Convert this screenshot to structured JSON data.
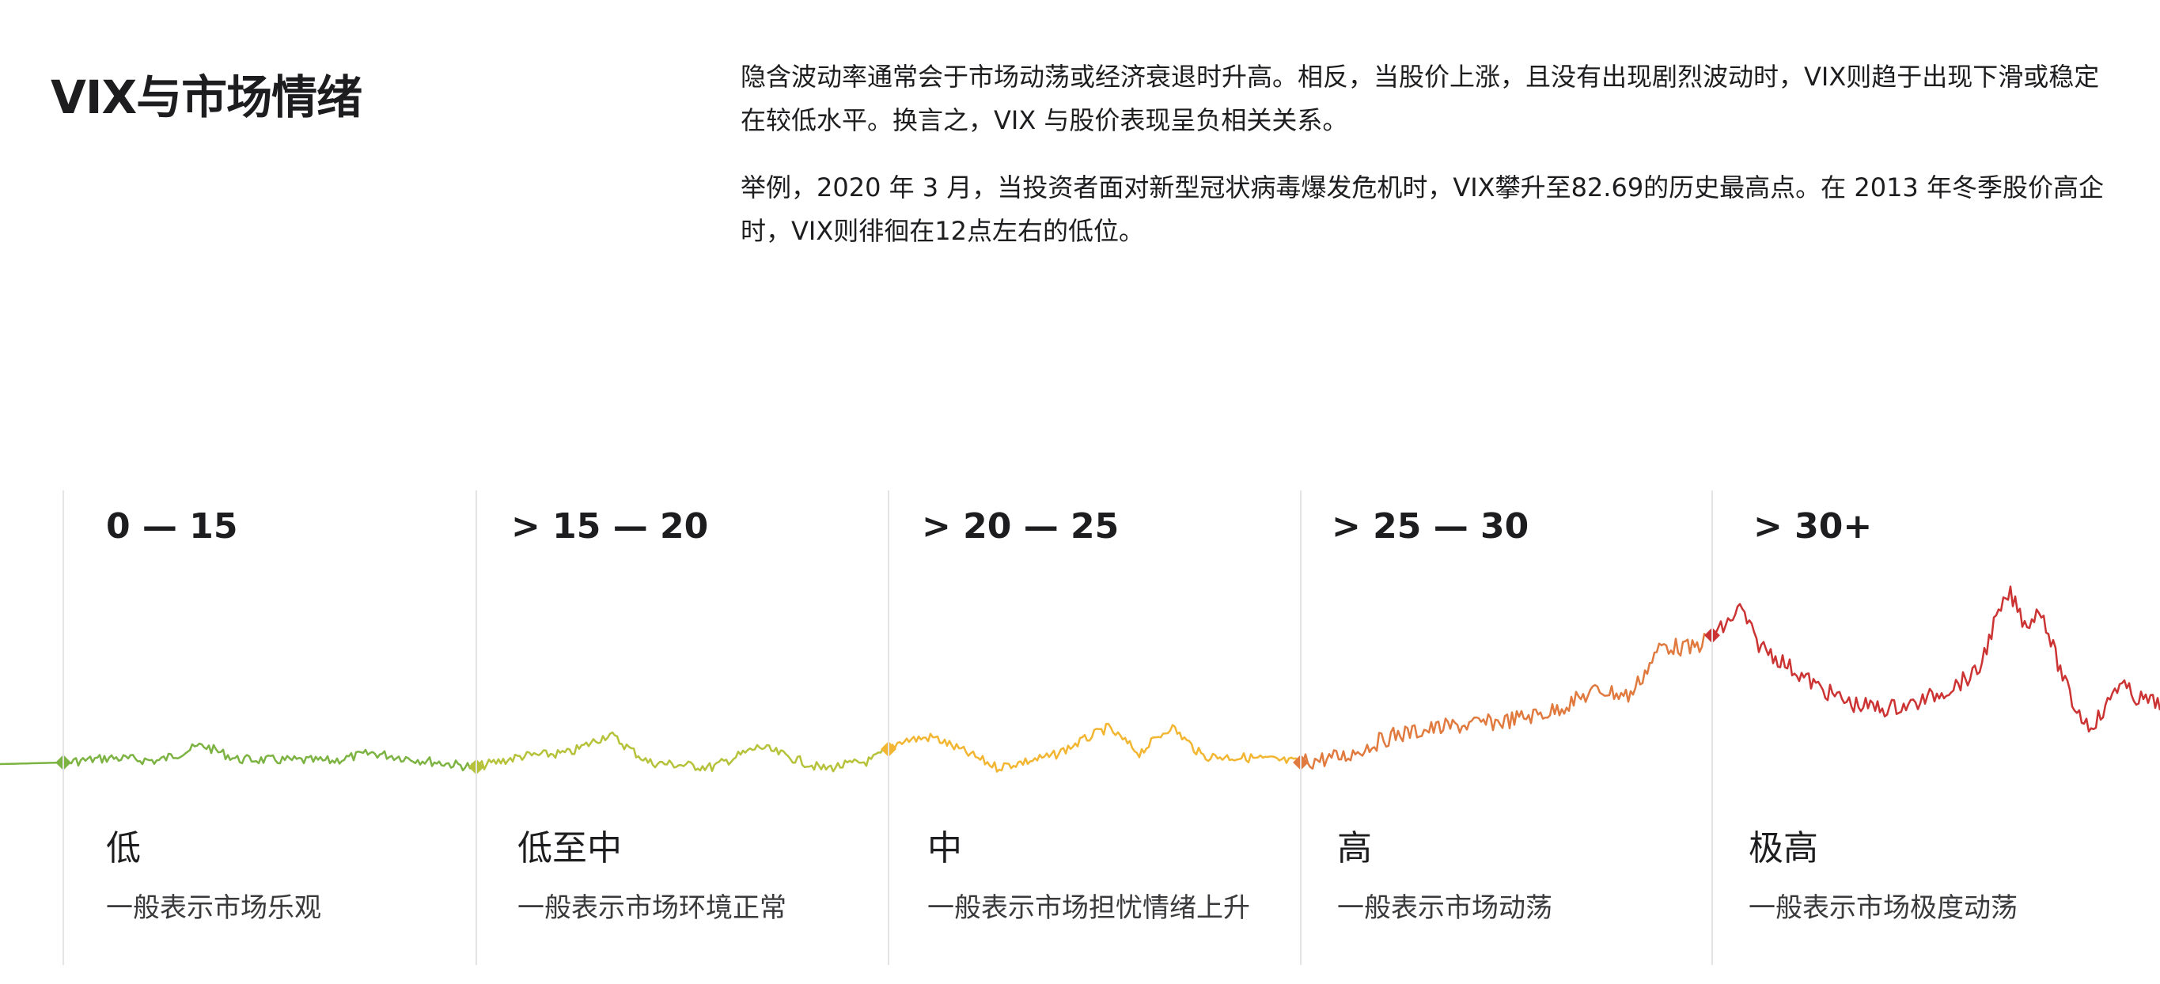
{
  "header": {
    "title": "VIX与市场情绪"
  },
  "intro": {
    "paragraph_1": "隐含波动率通常会于市场动荡或经济衰退时升高。相反，当股价上涨，且没有出现剧烈波动时，VIX则趋于出现下滑或稳定在较低水平。换言之，VIX 与股价表现呈负相关关系。",
    "paragraph_2": "举例，2020 年 3 月，当投资者面对新型冠状病毒爆发危机时，VIX攀升至82.69的历史最高点。在 2013 年冬季股价高企时，VIX则徘徊在12点左右的低位。"
  },
  "levels": [
    {
      "range": "0 — 15",
      "name": "低",
      "description": "一般表示市场乐观",
      "color": "#7cb342"
    },
    {
      "range": "> 15 — 20",
      "name": "低至中",
      "description": "一般表示市场环境正常",
      "color": "#b5c23a"
    },
    {
      "range": "> 20 — 25",
      "name": "中",
      "description": "一般表示市场担忧情绪上升",
      "color": "#f2b632"
    },
    {
      "range": "> 25 — 30",
      "name": "高",
      "description": "一般表示市场动荡",
      "color": "#e07a3f"
    },
    {
      "range": "> 30+",
      "name": "极高",
      "description": "一般表示市场极度动荡",
      "color": "#cc3333"
    }
  ]
}
